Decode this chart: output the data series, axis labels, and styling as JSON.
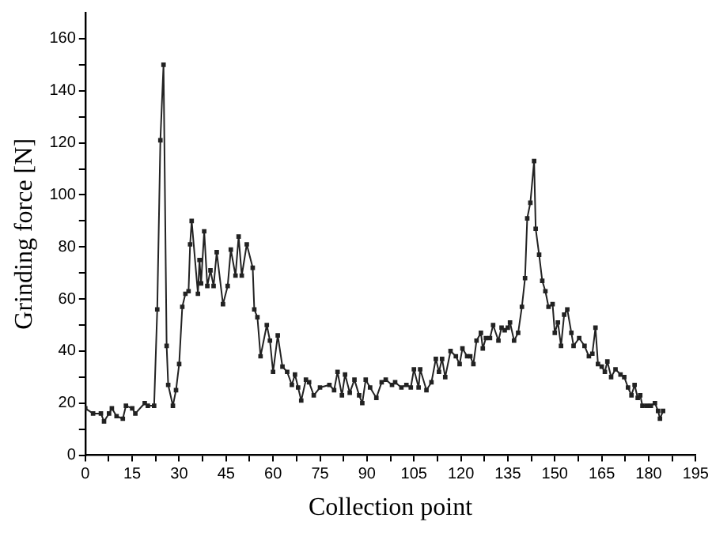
{
  "chart_data": {
    "type": "line",
    "xlabel": "Collection point",
    "ylabel": "Grinding force [N]",
    "xlim": [
      0,
      195
    ],
    "ylim": [
      0,
      170
    ],
    "xticks": [
      0,
      {
        "value": 7.5,
        "label": null
      },
      15,
      {
        "value": 22.5,
        "label": null
      },
      30,
      {
        "value": 37.5,
        "label": null
      },
      45,
      {
        "value": 52.5,
        "label": null
      },
      60,
      {
        "value": 67.5,
        "label": null
      },
      75,
      {
        "value": 82.5,
        "label": null
      },
      90,
      {
        "value": 97.5,
        "label": null
      },
      105,
      {
        "value": 112.5,
        "label": null
      },
      120,
      {
        "value": 127.5,
        "label": null
      },
      135,
      {
        "value": 142.5,
        "label": null
      },
      150,
      {
        "value": 157.5,
        "label": null
      },
      165,
      {
        "value": 172.5,
        "label": null
      },
      180,
      {
        "value": 187.5,
        "label": null
      },
      195
    ],
    "yticks": [
      0,
      {
        "value": 10,
        "label": null
      },
      20,
      {
        "value": 30,
        "label": null
      },
      40,
      {
        "value": 50,
        "label": null
      },
      60,
      {
        "value": 70,
        "label": null
      },
      80,
      {
        "value": 90,
        "label": null
      },
      100,
      {
        "value": 110,
        "label": null
      },
      120,
      {
        "value": 130,
        "label": null
      },
      140,
      {
        "value": 150,
        "label": null
      },
      160
    ],
    "grid": false,
    "legend": false,
    "marker": "square",
    "line_style": "solid",
    "series": [
      {
        "color": "#222222",
        "x": [
          0,
          2.5,
          5,
          6,
          7.6,
          8.5,
          10,
          12,
          13,
          15,
          16,
          19,
          20,
          22,
          23,
          24,
          25,
          26,
          26.5,
          28,
          29,
          30,
          31,
          32,
          33,
          33.5,
          34,
          36,
          36.5,
          37,
          38,
          39,
          40,
          41,
          42,
          44,
          45.5,
          46.5,
          48,
          49,
          50,
          51.6,
          53.5,
          54,
          55,
          56,
          58,
          59,
          60,
          61.5,
          63,
          64.5,
          66,
          67,
          68,
          69,
          70.5,
          71.5,
          73,
          75,
          78,
          79.5,
          80.6,
          82,
          83,
          84.5,
          86,
          87.5,
          88.5,
          89.6,
          91,
          93,
          94.7,
          96,
          98,
          99,
          101,
          102.6,
          104,
          105,
          106.5,
          107,
          109,
          110.6,
          112,
          113,
          114,
          115,
          116.7,
          118.4,
          119.6,
          120.5,
          122,
          123,
          124,
          125,
          126.4,
          127,
          128,
          129.3,
          130.3,
          132,
          133,
          134,
          135,
          135.7,
          137,
          138.3,
          139.5,
          140.5,
          141.2,
          142.2,
          143.4,
          143.9,
          145,
          146,
          147,
          148,
          149.3,
          150,
          151,
          152,
          153,
          154,
          155.3,
          156,
          157.8,
          159.5,
          160.9,
          162,
          163,
          163.8,
          165,
          166,
          166.8,
          168,
          169.4,
          171,
          172.2,
          173.4,
          174.5,
          175.5,
          176.5,
          177.3,
          178,
          179.4,
          180.7,
          182,
          183,
          183.6,
          184.6
        ],
        "values": [
          18,
          16,
          16,
          13,
          16,
          18,
          15,
          14,
          19,
          18,
          16,
          20,
          19,
          19,
          56,
          121,
          150,
          42,
          27,
          19,
          25,
          35,
          57,
          62,
          63,
          81,
          90,
          62,
          75,
          66,
          86,
          65,
          71,
          65,
          78,
          58,
          65,
          79,
          69,
          84,
          69,
          81,
          72,
          56,
          53,
          38,
          50,
          44,
          32,
          46,
          34,
          32,
          27,
          31,
          26,
          21,
          29,
          28,
          23,
          26,
          27,
          25,
          32,
          23,
          31,
          24,
          29,
          23,
          20,
          29,
          26,
          22,
          28,
          29,
          27,
          28,
          26,
          27,
          26,
          33,
          26,
          33,
          25,
          28,
          37,
          32,
          37,
          30,
          40,
          38,
          35,
          41,
          38,
          38,
          35,
          44,
          47,
          41,
          45,
          45,
          50,
          44,
          49,
          48,
          49,
          51,
          44,
          47,
          57,
          68,
          91,
          97,
          113,
          87,
          77,
          67,
          63,
          57,
          58,
          47,
          51,
          42,
          54,
          56,
          47,
          42,
          45,
          42,
          38,
          39,
          49,
          35,
          34,
          32,
          36,
          30,
          33,
          31,
          30,
          26,
          23,
          27,
          22,
          23,
          19,
          19,
          19,
          20,
          17,
          14,
          17
        ]
      }
    ]
  }
}
